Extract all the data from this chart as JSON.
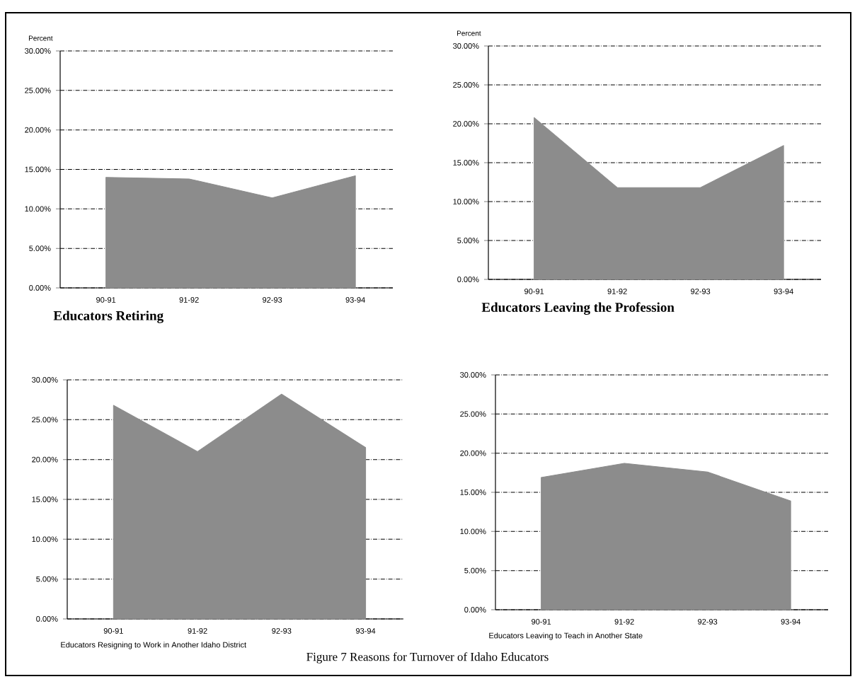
{
  "chart_data": [
    {
      "type": "area",
      "title": "Educators Retiring",
      "ylabel": "Percent",
      "categories": [
        "90-91",
        "91-92",
        "92-93",
        "93-94"
      ],
      "values": [
        14.0,
        13.8,
        11.4,
        14.2
      ],
      "color": "#8c8c8c",
      "ylim": [
        0,
        30
      ],
      "yticks": [
        {
          "value": 0,
          "label": "0.00%"
        },
        {
          "value": 5,
          "label": "5.00%"
        },
        {
          "value": 10,
          "label": "10.00%"
        },
        {
          "value": 15,
          "label": "15.00%"
        },
        {
          "value": 20,
          "label": "20.00%"
        },
        {
          "value": 25,
          "label": "25.00%"
        },
        {
          "value": 30,
          "label": "30.00%"
        }
      ],
      "grid": "y"
    },
    {
      "type": "area",
      "title": "Educators Leaving the Profession",
      "ylabel": "Percent",
      "categories": [
        "90-91",
        "91-92",
        "92-93",
        "93-94"
      ],
      "values": [
        20.8,
        11.8,
        11.8,
        17.2
      ],
      "color": "#8c8c8c",
      "ylim": [
        0,
        30
      ],
      "yticks": [
        {
          "value": 0,
          "label": "0.00%"
        },
        {
          "value": 5,
          "label": "5.00%"
        },
        {
          "value": 10,
          "label": "10.00%"
        },
        {
          "value": 15,
          "label": "15.00%"
        },
        {
          "value": 20,
          "label": "20.00%"
        },
        {
          "value": 25,
          "label": "25.00%"
        },
        {
          "value": 30,
          "label": "30.00%"
        }
      ],
      "grid": "y"
    },
    {
      "type": "area",
      "title": "Educators Resigning to Work in Another Idaho District",
      "categories": [
        "90-91",
        "91-92",
        "92-93",
        "93-94"
      ],
      "values": [
        26.8,
        21.0,
        28.2,
        21.5
      ],
      "color": "#8c8c8c",
      "ylim": [
        0,
        30
      ],
      "yticks": [
        {
          "value": 0,
          "label": "0.00%"
        },
        {
          "value": 5,
          "label": "5.00%"
        },
        {
          "value": 10,
          "label": "10.00%"
        },
        {
          "value": 15,
          "label": "15.00%"
        },
        {
          "value": 20,
          "label": "20.00%"
        },
        {
          "value": 25,
          "label": "25.00%"
        },
        {
          "value": 30,
          "label": "30.00%"
        }
      ],
      "grid": "y"
    },
    {
      "type": "area",
      "title": "Educators Leaving to Teach in Another State",
      "categories": [
        "90-91",
        "91-92",
        "92-93",
        "93-94"
      ],
      "values": [
        16.9,
        18.7,
        17.6,
        13.9
      ],
      "color": "#8c8c8c",
      "ylim": [
        0,
        30
      ],
      "yticks": [
        {
          "value": 0,
          "label": "0.00%"
        },
        {
          "value": 5,
          "label": "5.00%"
        },
        {
          "value": 10,
          "label": "10.00%"
        },
        {
          "value": 15,
          "label": "15.00%"
        },
        {
          "value": 20,
          "label": "20.00%"
        },
        {
          "value": 25,
          "label": "25.00%"
        },
        {
          "value": 30,
          "label": "30.00%"
        }
      ],
      "grid": "y",
      "annotations": [
        "Figure 7    Reasons for Turnover of Idaho Educators"
      ]
    }
  ]
}
